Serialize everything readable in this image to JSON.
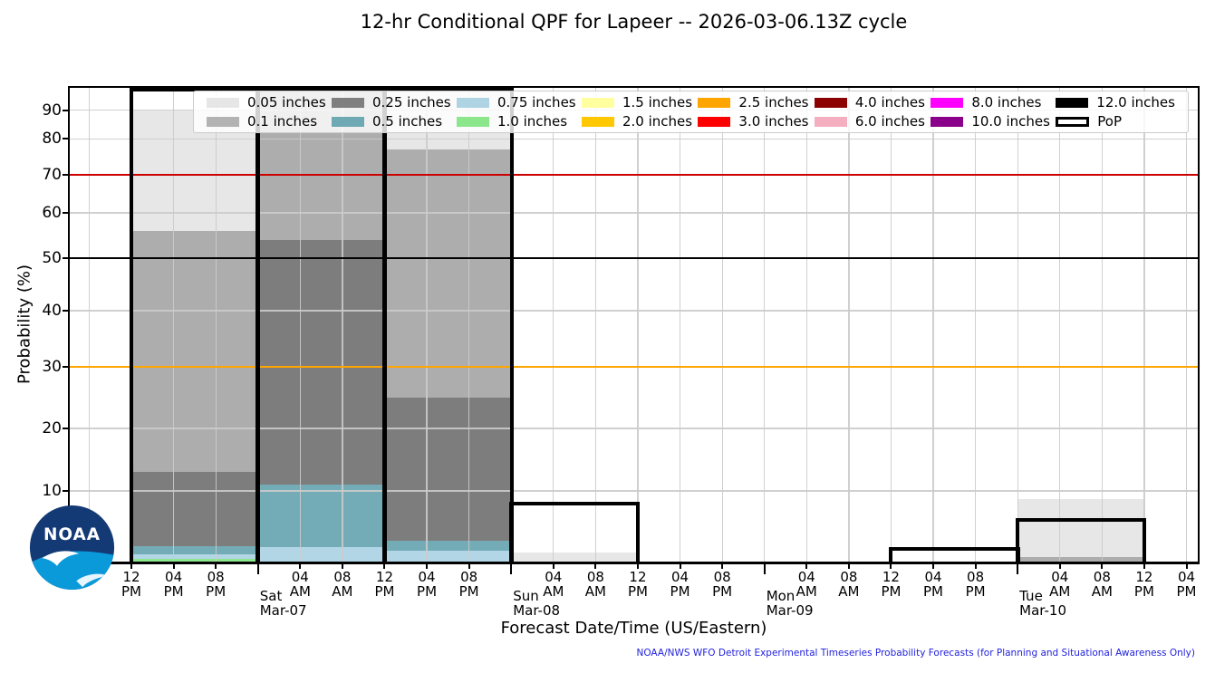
{
  "title": "12-hr Conditional QPF for Lapeer -- 2026-03-06.13Z cycle",
  "axes": {
    "xlabel": "Forecast Date/Time (US/Eastern)",
    "ylabel": "Probability (%)",
    "yticks": [
      10,
      20,
      30,
      40,
      50,
      60,
      70,
      80,
      90
    ],
    "ylim": [
      0,
      100
    ]
  },
  "footer": "NOAA/NWS WFO Detroit Experimental Timeseries Probability Forecasts (for Planning and Situational Awareness Only)",
  "logo": {
    "text": "NOAA"
  },
  "legend": {
    "items": [
      {
        "label": "0.05 inches",
        "color": "#e6e6e6"
      },
      {
        "label": "0.1 inches",
        "color": "#b3b3b3"
      },
      {
        "label": "0.25 inches",
        "color": "#7f7f7f"
      },
      {
        "label": "0.5 inches",
        "color": "#6fa9b3"
      },
      {
        "label": "0.75 inches",
        "color": "#aed4e4"
      },
      {
        "label": "1.0 inches",
        "color": "#8ce68c"
      },
      {
        "label": "1.5 inches",
        "color": "#ffffa0"
      },
      {
        "label": "2.0 inches",
        "color": "#ffc800"
      },
      {
        "label": "2.5 inches",
        "color": "#ffa500"
      },
      {
        "label": "3.0 inches",
        "color": "#ff0000"
      },
      {
        "label": "4.0 inches",
        "color": "#8b0000"
      },
      {
        "label": "6.0 inches",
        "color": "#f4aec0"
      },
      {
        "label": "8.0 inches",
        "color": "#ff00ff"
      },
      {
        "label": "10.0 inches",
        "color": "#8b008b"
      },
      {
        "label": "12.0 inches",
        "color": "#000000"
      },
      {
        "label": "PoP",
        "color": "outline"
      }
    ]
  },
  "chart_data": {
    "type": "bar",
    "title": "12-hr Conditional QPF for Lapeer -- 2026-03-06.13Z cycle",
    "xlabel": "Forecast Date/Time (US/Eastern)",
    "ylabel": "Probability (%)",
    "x_unit": "hours after Fri Mar-06 12PM EST",
    "grid": true,
    "legend_position": "upper center, 8 columns",
    "y_scale_points": [
      [
        0,
        0
      ],
      [
        10,
        0.1492
      ],
      [
        20,
        0.2811
      ],
      [
        30,
        0.4111
      ],
      [
        40,
        0.5296
      ],
      [
        50,
        0.6405
      ],
      [
        60,
        0.7361
      ],
      [
        70,
        0.817
      ],
      [
        80,
        0.8924
      ],
      [
        90,
        0.9528
      ],
      [
        100,
        1.0
      ]
    ],
    "reference_lines": [
      {
        "value": 70,
        "color": "#cc0000",
        "width": 1.6
      },
      {
        "value": 50,
        "color": "#000000",
        "width": 1.6
      },
      {
        "value": 30,
        "color": "#ffa500",
        "width": 2.2
      }
    ],
    "threshold_order": [
      "0.05",
      "0.1",
      "0.25",
      "0.5",
      "0.75",
      "1.0"
    ],
    "series_colors": {
      "0.05": "#e7e7e7",
      "0.1": "#adadad",
      "0.25": "#7d7d7d",
      "0.5": "#73acb6",
      "0.75": "#b2d6e6",
      "1.0": "#8ce68c",
      "pop_edge": "#000000"
    },
    "bars": [
      {
        "period": "Fri Mar-06 12PM-12AM",
        "t0": 0,
        "t1": 12,
        "pop": 99,
        "exceedance": {
          "0.05": 90,
          "0.1": 56,
          "0.25": 13,
          "0.5": 2.2,
          "0.75": 1.0,
          "1.0": 0.35
        }
      },
      {
        "period": "Sat Mar-07 12AM-12PM",
        "t0": 12,
        "t1": 24,
        "pop": 99,
        "exceedance": {
          "0.05": 99,
          "0.1": 99,
          "0.25": 54,
          "0.5": 11,
          "0.75": 2.1,
          "1.0": 0
        }
      },
      {
        "period": "Sat Mar-07 12PM-12AM",
        "t0": 24,
        "t1": 36,
        "pop": 99,
        "exceedance": {
          "0.05": 99,
          "0.1": 77,
          "0.25": 25,
          "0.5": 2.9,
          "0.75": 1.5,
          "1.0": 0
        }
      },
      {
        "period": "Sun Mar-08 12AM-12PM",
        "t0": 36,
        "t1": 48,
        "pop": 8.1,
        "exceedance": {
          "0.05": 1.3,
          "0.1": 0,
          "0.25": 0,
          "0.5": 0,
          "0.75": 0,
          "1.0": 0
        }
      },
      {
        "period": "Mon Mar-09 12PM-12AM",
        "t0": 72,
        "t1": 84,
        "pop": 1.7,
        "exceedance": {
          "0.05": 0,
          "0.1": 0,
          "0.25": 0,
          "0.5": 0,
          "0.75": 0,
          "1.0": 0
        }
      },
      {
        "period": "Tue Mar-10 12AM-12PM",
        "t0": 84,
        "t1": 96,
        "pop": 5.8,
        "exceedance": {
          "0.05": 8.8,
          "0.1": 0.6,
          "0.25": 0,
          "0.5": 0,
          "0.75": 0,
          "1.0": 0
        }
      }
    ],
    "x_ticks": [
      {
        "t": -4
      },
      {
        "t": 0,
        "l1": "12",
        "l2": "PM"
      },
      {
        "t": 4,
        "l1": "04",
        "l2": "PM"
      },
      {
        "t": 8,
        "l1": "08",
        "l2": "PM"
      },
      {
        "t": 12,
        "day": "Sat",
        "date": "Mar-07"
      },
      {
        "t": 16,
        "l1": "04",
        "l2": "AM"
      },
      {
        "t": 20,
        "l1": "08",
        "l2": "AM"
      },
      {
        "t": 24,
        "l1": "12",
        "l2": "PM"
      },
      {
        "t": 28,
        "l1": "04",
        "l2": "PM"
      },
      {
        "t": 32,
        "l1": "08",
        "l2": "PM"
      },
      {
        "t": 36,
        "day": "Sun",
        "date": "Mar-08"
      },
      {
        "t": 40,
        "l1": "04",
        "l2": "AM"
      },
      {
        "t": 44,
        "l1": "08",
        "l2": "AM"
      },
      {
        "t": 48,
        "l1": "12",
        "l2": "PM"
      },
      {
        "t": 52,
        "l1": "04",
        "l2": "PM"
      },
      {
        "t": 56,
        "l1": "08",
        "l2": "PM"
      },
      {
        "t": 60,
        "day": "Mon",
        "date": "Mar-09"
      },
      {
        "t": 64,
        "l1": "04",
        "l2": "AM"
      },
      {
        "t": 68,
        "l1": "08",
        "l2": "AM"
      },
      {
        "t": 72,
        "l1": "12",
        "l2": "PM"
      },
      {
        "t": 76,
        "l1": "04",
        "l2": "PM"
      },
      {
        "t": 80,
        "l1": "08",
        "l2": "PM"
      },
      {
        "t": 84,
        "day": "Tue",
        "date": "Mar-10"
      },
      {
        "t": 88,
        "l1": "04",
        "l2": "AM"
      },
      {
        "t": 92,
        "l1": "08",
        "l2": "AM"
      },
      {
        "t": 96,
        "l1": "12",
        "l2": "PM"
      },
      {
        "t": 100,
        "l1": "04",
        "l2": "PM"
      }
    ]
  }
}
